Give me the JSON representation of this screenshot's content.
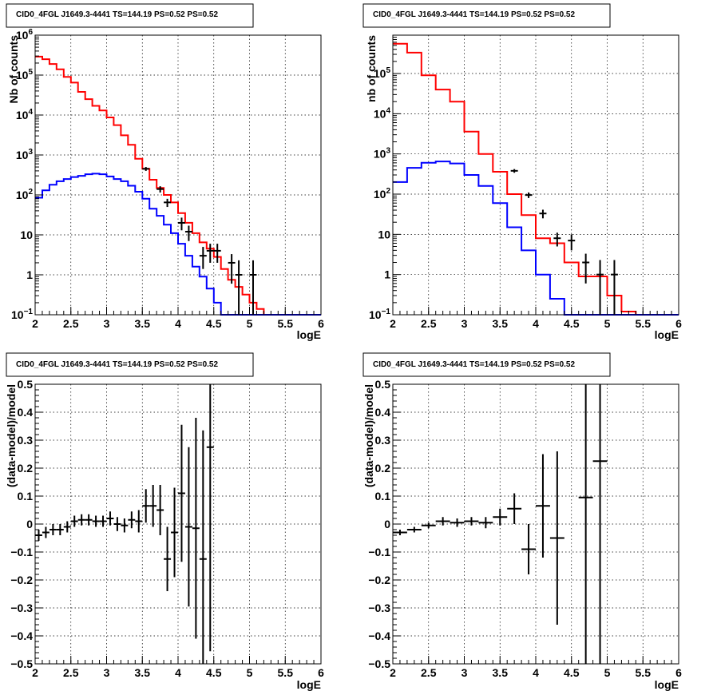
{
  "chart_data": [
    {
      "type": "line",
      "title": "CID0_4FGL J1649.3-4441 TS=144.19 PS=0.52 PS=0.52",
      "xlabel": "logE",
      "ylabel": "Nb of counts",
      "ylog": true,
      "xlim": [
        2,
        6
      ],
      "ylim": [
        0.1,
        1000000
      ],
      "grid": true,
      "xticks": [
        "2",
        "2.5",
        "3",
        "3.5",
        "4",
        "4.5",
        "5",
        "5.5",
        "6"
      ],
      "yticks": [
        {
          "value": 0.1,
          "base": "10",
          "exp": "−1"
        },
        {
          "value": 1,
          "text": "1"
        },
        {
          "value": 10,
          "text": "10"
        },
        {
          "value": 100,
          "base": "10",
          "exp": "2"
        },
        {
          "value": 1000,
          "base": "10",
          "exp": "3"
        },
        {
          "value": 10000,
          "base": "10",
          "exp": "4"
        },
        {
          "value": 100000,
          "base": "10",
          "exp": "5"
        },
        {
          "value": 1000000,
          "base": "10",
          "exp": "6"
        }
      ],
      "bin_edges": [
        2.0,
        2.1,
        2.2,
        2.3,
        2.4,
        2.5,
        2.6,
        2.7,
        2.8,
        2.9,
        3.0,
        3.1,
        3.2,
        3.3,
        3.4,
        3.5,
        3.6,
        3.7,
        3.8,
        3.9,
        4.0,
        4.1,
        4.2,
        4.3,
        4.4,
        4.5,
        4.6,
        4.7,
        4.8,
        4.9,
        5.0,
        5.1,
        5.2,
        5.3,
        5.4,
        5.5,
        5.6,
        5.7,
        5.8,
        5.9,
        6.0
      ],
      "series": [
        {
          "color": "#ff0000",
          "values": [
            290000,
            250000,
            190000,
            140000,
            90000,
            65000,
            38000,
            25000,
            17000,
            13000,
            8700,
            5600,
            3100,
            1800,
            800,
            450,
            240,
            150,
            100,
            65,
            35,
            20,
            11,
            6.5,
            4.5,
            2.8,
            1.4,
            0.75,
            0.5,
            0.32,
            0.2,
            0.14,
            0.1,
            0,
            0,
            0,
            0,
            0,
            0,
            0
          ]
        },
        {
          "color": "#0000ff",
          "values": [
            85,
            130,
            180,
            220,
            250,
            280,
            300,
            330,
            340,
            330,
            290,
            250,
            220,
            170,
            120,
            80,
            45,
            30,
            18,
            11,
            6,
            3,
            1.6,
            0.9,
            0.45,
            0.2,
            0.1,
            0,
            0,
            0,
            0,
            0,
            0,
            0,
            0,
            0,
            0,
            0,
            0,
            0
          ]
        }
      ],
      "points": [
        {
          "x": 3.55,
          "y": 450,
          "ylo": 400,
          "yhi": 500
        },
        {
          "x": 3.75,
          "y": 140,
          "ylo": 115,
          "yhi": 165
        },
        {
          "x": 3.85,
          "y": 65,
          "ylo": 50,
          "yhi": 80
        },
        {
          "x": 4.05,
          "y": 20,
          "ylo": 13,
          "yhi": 27
        },
        {
          "x": 4.15,
          "y": 12,
          "ylo": 7,
          "yhi": 17
        },
        {
          "x": 4.35,
          "y": 3,
          "ylo": 1.4,
          "yhi": 5
        },
        {
          "x": 4.45,
          "y": 4,
          "ylo": 2,
          "yhi": 6
        },
        {
          "x": 4.55,
          "y": 4,
          "ylo": 2,
          "yhi": 6
        },
        {
          "x": 4.75,
          "y": 2,
          "ylo": 0.6,
          "yhi": 3.3
        },
        {
          "x": 4.85,
          "y": 1,
          "ylo": 0.1,
          "yhi": 2.3
        },
        {
          "x": 5.05,
          "y": 1,
          "ylo": 0.1,
          "yhi": 2.3
        }
      ]
    },
    {
      "type": "line",
      "title": "CID0_4FGL J1649.3-4441 TS=144.19 PS=0.52 PS=0.52",
      "xlabel": "logE",
      "ylabel": "nb of counts",
      "ylog": true,
      "xlim": [
        2,
        6
      ],
      "ylim": [
        0.1,
        900000
      ],
      "grid": true,
      "xticks": [
        "2",
        "2.5",
        "3",
        "3.5",
        "4",
        "4.5",
        "5",
        "5.5",
        "6"
      ],
      "yticks": [
        {
          "value": 0.1,
          "base": "10",
          "exp": "−1"
        },
        {
          "value": 1,
          "text": "1"
        },
        {
          "value": 10,
          "text": "10"
        },
        {
          "value": 100,
          "base": "10",
          "exp": "2"
        },
        {
          "value": 1000,
          "base": "10",
          "exp": "3"
        },
        {
          "value": 10000,
          "base": "10",
          "exp": "4"
        },
        {
          "value": 100000,
          "base": "10",
          "exp": "5"
        }
      ],
      "bin_edges": [
        2.0,
        2.2,
        2.4,
        2.6,
        2.8,
        3.0,
        3.2,
        3.4,
        3.6,
        3.8,
        4.0,
        4.2,
        4.4,
        4.6,
        4.8,
        5.0,
        5.2,
        5.4,
        5.6,
        5.8,
        6.0
      ],
      "series": [
        {
          "color": "#ff0000",
          "values": [
            550000,
            330000,
            90000,
            40000,
            20000,
            3600,
            1000,
            360,
            100,
            30,
            8,
            6,
            2,
            0.9,
            0.9,
            0.3,
            0.12,
            0,
            0,
            0
          ]
        },
        {
          "color": "#0000ff",
          "values": [
            200,
            450,
            600,
            650,
            580,
            300,
            160,
            60,
            15,
            4,
            1,
            0.25,
            0,
            0,
            0,
            0,
            0,
            0,
            0,
            0
          ]
        }
      ],
      "points": [
        {
          "x": 3.7,
          "y": 380,
          "ylo": 340,
          "yhi": 420
        },
        {
          "x": 3.9,
          "y": 95,
          "ylo": 80,
          "yhi": 110
        },
        {
          "x": 4.1,
          "y": 33,
          "ylo": 25,
          "yhi": 41
        },
        {
          "x": 4.3,
          "y": 8,
          "ylo": 5,
          "yhi": 11
        },
        {
          "x": 4.5,
          "y": 7,
          "ylo": 4,
          "yhi": 10
        },
        {
          "x": 4.7,
          "y": 2,
          "ylo": 0.6,
          "yhi": 3.3
        },
        {
          "x": 4.9,
          "y": 1,
          "ylo": 0.1,
          "yhi": 2.3
        },
        {
          "x": 5.1,
          "y": 1,
          "ylo": 0.1,
          "yhi": 2.3
        }
      ]
    },
    {
      "type": "scatter",
      "title": "CID0_4FGL J1649.3-4441 TS=144.19 PS=0.52 PS=0.52",
      "xlabel": "logE",
      "ylabel": "(data-model)/model",
      "xlim": [
        2,
        6
      ],
      "ylim": [
        -0.5,
        0.5
      ],
      "grid": true,
      "xticks": [
        "2",
        "2.5",
        "3",
        "3.5",
        "4",
        "4.5",
        "5",
        "5.5",
        "6"
      ],
      "yticks": [
        "−0.5",
        "−0.4",
        "−0.3",
        "−0.2",
        "−0.1",
        "0",
        "0.1",
        "0.2",
        "0.3",
        "0.4",
        "0.5"
      ],
      "xhalfwidth": 0.05,
      "points": [
        {
          "x": 2.05,
          "y": -0.04,
          "err": 0.02
        },
        {
          "x": 2.15,
          "y": -0.03,
          "err": 0.02
        },
        {
          "x": 2.25,
          "y": -0.02,
          "err": 0.02
        },
        {
          "x": 2.35,
          "y": -0.02,
          "err": 0.02
        },
        {
          "x": 2.45,
          "y": -0.01,
          "err": 0.02
        },
        {
          "x": 2.55,
          "y": 0.01,
          "err": 0.02
        },
        {
          "x": 2.65,
          "y": 0.015,
          "err": 0.02
        },
        {
          "x": 2.75,
          "y": 0.015,
          "err": 0.02
        },
        {
          "x": 2.85,
          "y": 0.01,
          "err": 0.02
        },
        {
          "x": 2.95,
          "y": 0.01,
          "err": 0.02
        },
        {
          "x": 3.05,
          "y": 0.02,
          "err": 0.025
        },
        {
          "x": 3.15,
          "y": 0.0,
          "err": 0.025
        },
        {
          "x": 3.25,
          "y": -0.005,
          "err": 0.025
        },
        {
          "x": 3.35,
          "y": 0.015,
          "err": 0.03
        },
        {
          "x": 3.45,
          "y": 0.01,
          "err": 0.04
        },
        {
          "x": 3.55,
          "y": 0.065,
          "err": 0.06
        },
        {
          "x": 3.65,
          "y": 0.065,
          "err": 0.075
        },
        {
          "x": 3.75,
          "y": 0.05,
          "err": 0.09
        },
        {
          "x": 3.85,
          "y": -0.125,
          "err": 0.115
        },
        {
          "x": 3.95,
          "y": -0.03,
          "err": 0.16
        },
        {
          "x": 4.05,
          "y": 0.11,
          "err": 0.245
        },
        {
          "x": 4.15,
          "y": -0.01,
          "err": 0.285
        },
        {
          "x": 4.25,
          "y": -0.015,
          "err": 0.395
        },
        {
          "x": 4.35,
          "y": -0.125,
          "err": 0.46
        },
        {
          "x": 4.45,
          "y": 0.275,
          "err": 0.73
        }
      ]
    },
    {
      "type": "scatter",
      "title": "CID0_4FGL J1649.3-4441 TS=144.19 PS=0.52 PS=0.52",
      "xlabel": "logE",
      "ylabel": "(data-model)/model",
      "xlim": [
        2,
        6
      ],
      "ylim": [
        -0.5,
        0.5
      ],
      "grid": true,
      "xticks": [
        "2",
        "2.5",
        "3",
        "3.5",
        "4",
        "4.5",
        "5",
        "5.5",
        "6"
      ],
      "yticks": [
        "−0.5",
        "−0.4",
        "−0.3",
        "−0.2",
        "−0.1",
        "0",
        "0.1",
        "0.2",
        "0.3",
        "0.4",
        "0.5"
      ],
      "xhalfwidth": 0.1,
      "points": [
        {
          "x": 2.1,
          "y": -0.03,
          "err": 0.01
        },
        {
          "x": 2.3,
          "y": -0.02,
          "err": 0.01
        },
        {
          "x": 2.5,
          "y": -0.005,
          "err": 0.01
        },
        {
          "x": 2.7,
          "y": 0.01,
          "err": 0.015
        },
        {
          "x": 2.9,
          "y": 0.005,
          "err": 0.015
        },
        {
          "x": 3.1,
          "y": 0.01,
          "err": 0.015
        },
        {
          "x": 3.3,
          "y": 0.005,
          "err": 0.02
        },
        {
          "x": 3.5,
          "y": 0.025,
          "err": 0.03
        },
        {
          "x": 3.7,
          "y": 0.055,
          "err": 0.055
        },
        {
          "x": 3.9,
          "y": -0.09,
          "err": 0.09
        },
        {
          "x": 4.1,
          "y": 0.065,
          "err": 0.185
        },
        {
          "x": 4.3,
          "y": -0.05,
          "err": 0.31
        },
        {
          "x": 4.7,
          "y": 0.095,
          "err": 0.7
        },
        {
          "x": 4.9,
          "y": 0.225,
          "err": 0.75
        }
      ]
    }
  ]
}
